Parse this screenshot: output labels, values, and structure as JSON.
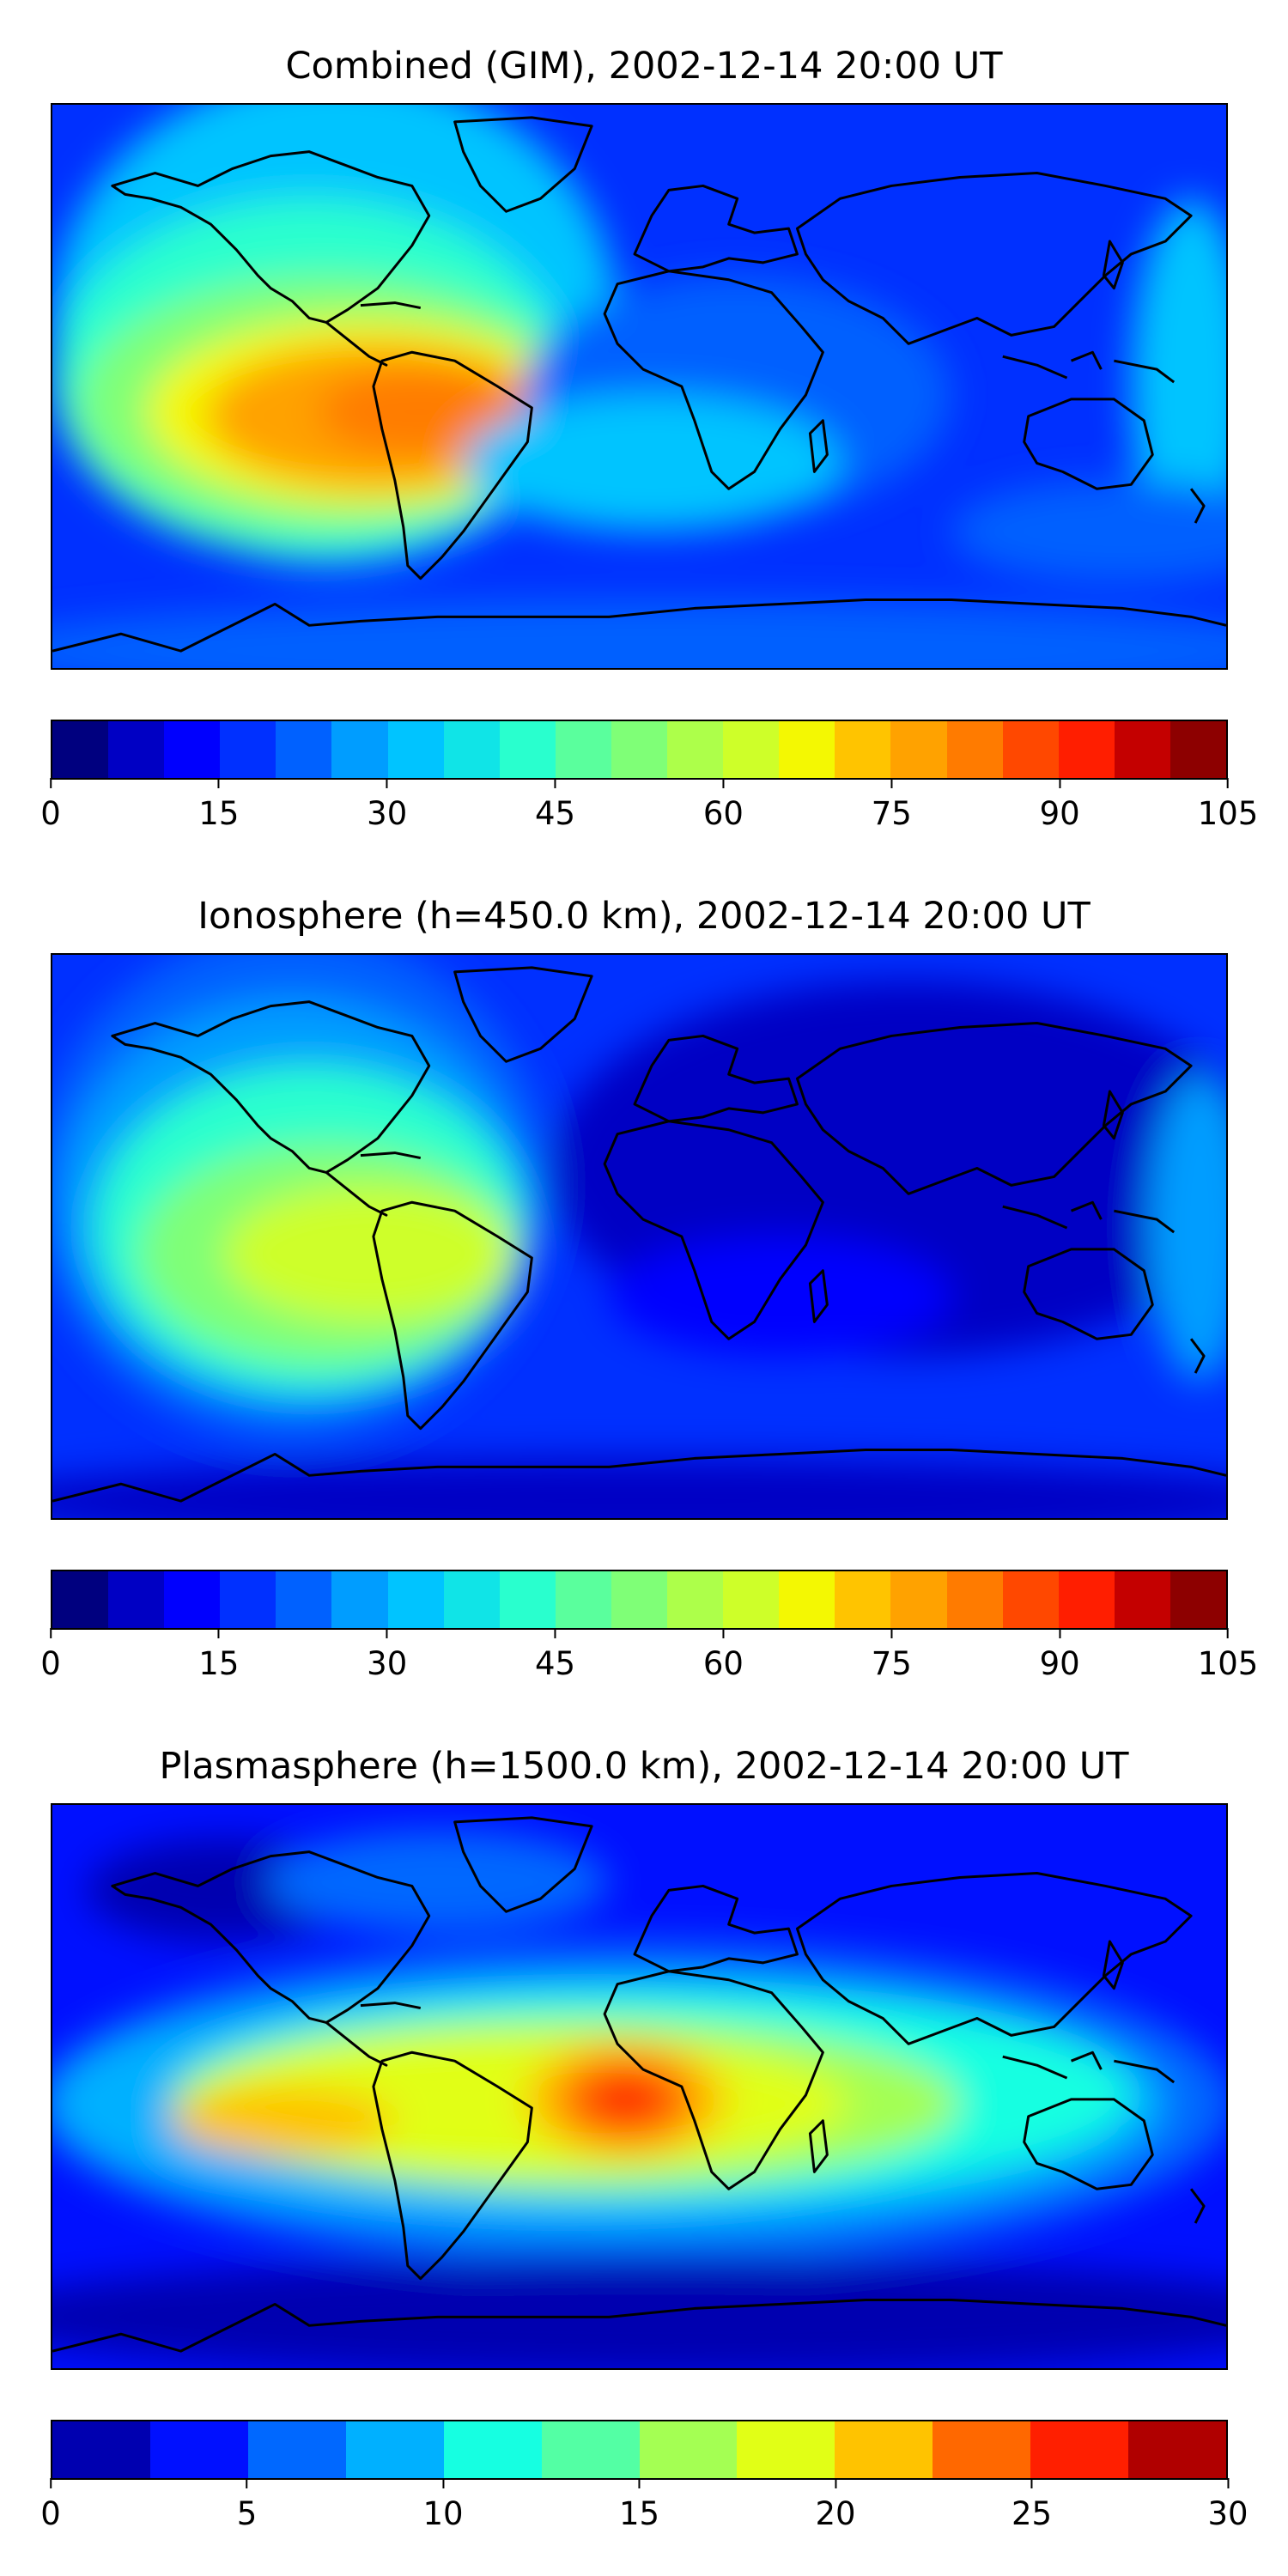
{
  "panels": [
    {
      "title": "Combined (GIM), 2002-12-14 20:00 UT",
      "colorbar": {
        "ticks": [
          "0",
          "15",
          "30",
          "45",
          "60",
          "75",
          "90",
          "105"
        ],
        "colors": [
          "#00007f",
          "#0000c4",
          "#0000fe",
          "#0030ff",
          "#0061ff",
          "#009dff",
          "#00c4ff",
          "#10e4e7",
          "#29ffce",
          "#5aff9d",
          "#7fff77",
          "#adff4a",
          "#ceff29",
          "#f4f802",
          "#ffc400",
          "#ffa200",
          "#ff7b00",
          "#ff4800",
          "#ff1e00",
          "#c40000",
          "#8d0000"
        ]
      }
    },
    {
      "title": "Ionosphere  (h=450.0 km), 2002-12-14 20:00 UT",
      "colorbar": {
        "ticks": [
          "0",
          "15",
          "30",
          "45",
          "60",
          "75",
          "90",
          "105"
        ],
        "colors": [
          "#00007f",
          "#0000c4",
          "#0000fe",
          "#0030ff",
          "#0061ff",
          "#009dff",
          "#00c4ff",
          "#10e4e7",
          "#29ffce",
          "#5aff9d",
          "#7fff77",
          "#adff4a",
          "#ceff29",
          "#f4f802",
          "#ffc400",
          "#ffa200",
          "#ff7b00",
          "#ff4800",
          "#ff1e00",
          "#c40000",
          "#8d0000"
        ]
      }
    },
    {
      "title": "Plasmasphere (h=1500.0 km), 2002-12-14 20:00 UT",
      "colorbar": {
        "ticks": [
          "0",
          "5",
          "10",
          "15",
          "20",
          "25",
          "30"
        ],
        "colors": [
          "#0000b0",
          "#0010ff",
          "#0068ff",
          "#00b0ff",
          "#16ffe1",
          "#53ffa4",
          "#a4ff53",
          "#e1ff16",
          "#ffc300",
          "#ff6800",
          "#ff1f00",
          "#b00000"
        ]
      }
    }
  ]
}
